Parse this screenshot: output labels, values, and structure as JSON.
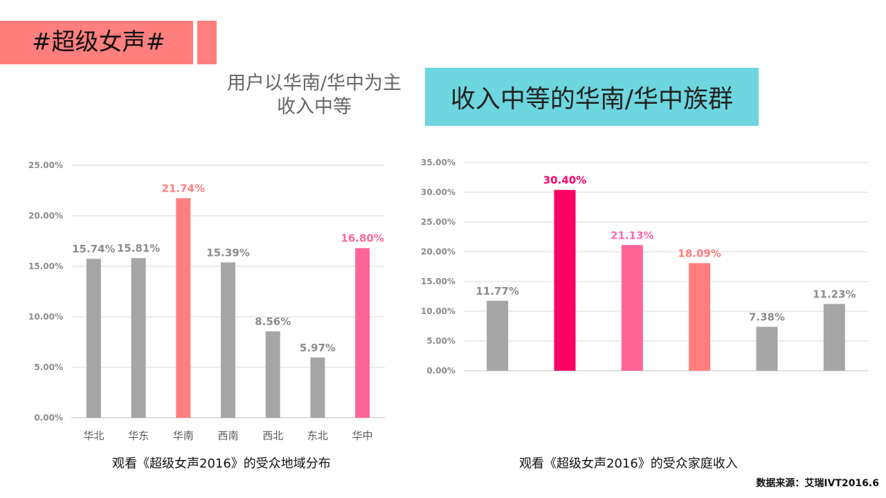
{
  "tag": {
    "text": "#超级女声#"
  },
  "subtitle": {
    "line1": "用户以华南/华中为主",
    "line2": "收入中等"
  },
  "highlight": {
    "text": "收入中等的华南/华中族群"
  },
  "source": "数据来源：艾瑞IVT2016.6",
  "colors": {
    "gray": "#a6a6a6",
    "coral": "#ff7f7e",
    "pink": "#ff6596",
    "magenta": "#ff0066",
    "hotpink": "#ff66b3",
    "tag": "#ff7f7e",
    "highlight": "#6dd6de"
  },
  "chart_data": [
    {
      "type": "bar",
      "caption": "观看《超级女声2016》的受众地域分布",
      "categories": [
        "华北",
        "华东",
        "华南",
        "西南",
        "西北",
        "东北",
        "华中"
      ],
      "values": [
        15.74,
        15.81,
        21.74,
        15.39,
        8.56,
        5.97,
        16.8
      ],
      "value_labels": [
        "15.74%",
        "15.81%",
        "21.74%",
        "15.39%",
        "8.56%",
        "5.97%",
        "16.80%"
      ],
      "bar_colors": [
        "#a6a6a6",
        "#a6a6a6",
        "#ff7f7e",
        "#a6a6a6",
        "#a6a6a6",
        "#a6a6a6",
        "#ff6596"
      ],
      "ylim": [
        0,
        25
      ],
      "yticks": [
        "0.00%",
        "5.00%",
        "10.00%",
        "15.00%",
        "20.00%",
        "25.00%"
      ],
      "grid": true
    },
    {
      "type": "bar",
      "caption": "观看《超级女声2016》的受众家庭收入",
      "categories": [
        "",
        "",
        "",
        "",
        "",
        ""
      ],
      "values": [
        11.77,
        30.4,
        21.13,
        18.09,
        7.38,
        11.23
      ],
      "value_labels": [
        "11.77%",
        "30.40%",
        "21.13%",
        "18.09%",
        "7.38%",
        "11.23%"
      ],
      "bar_colors": [
        "#a6a6a6",
        "#ff0066",
        "#ff6596",
        "#ff7f7e",
        "#a6a6a6",
        "#a6a6a6"
      ],
      "label_colors": [
        "#a6a6a6",
        "#ff0066",
        "#ff66b3",
        "#ff7f7e",
        "#a6a6a6",
        "#a6a6a6"
      ],
      "ylim": [
        0,
        35
      ],
      "yticks": [
        "0.00%",
        "5.00%",
        "10.00%",
        "15.00%",
        "20.00%",
        "25.00%",
        "30.00%",
        "35.00%"
      ],
      "grid": true
    }
  ]
}
